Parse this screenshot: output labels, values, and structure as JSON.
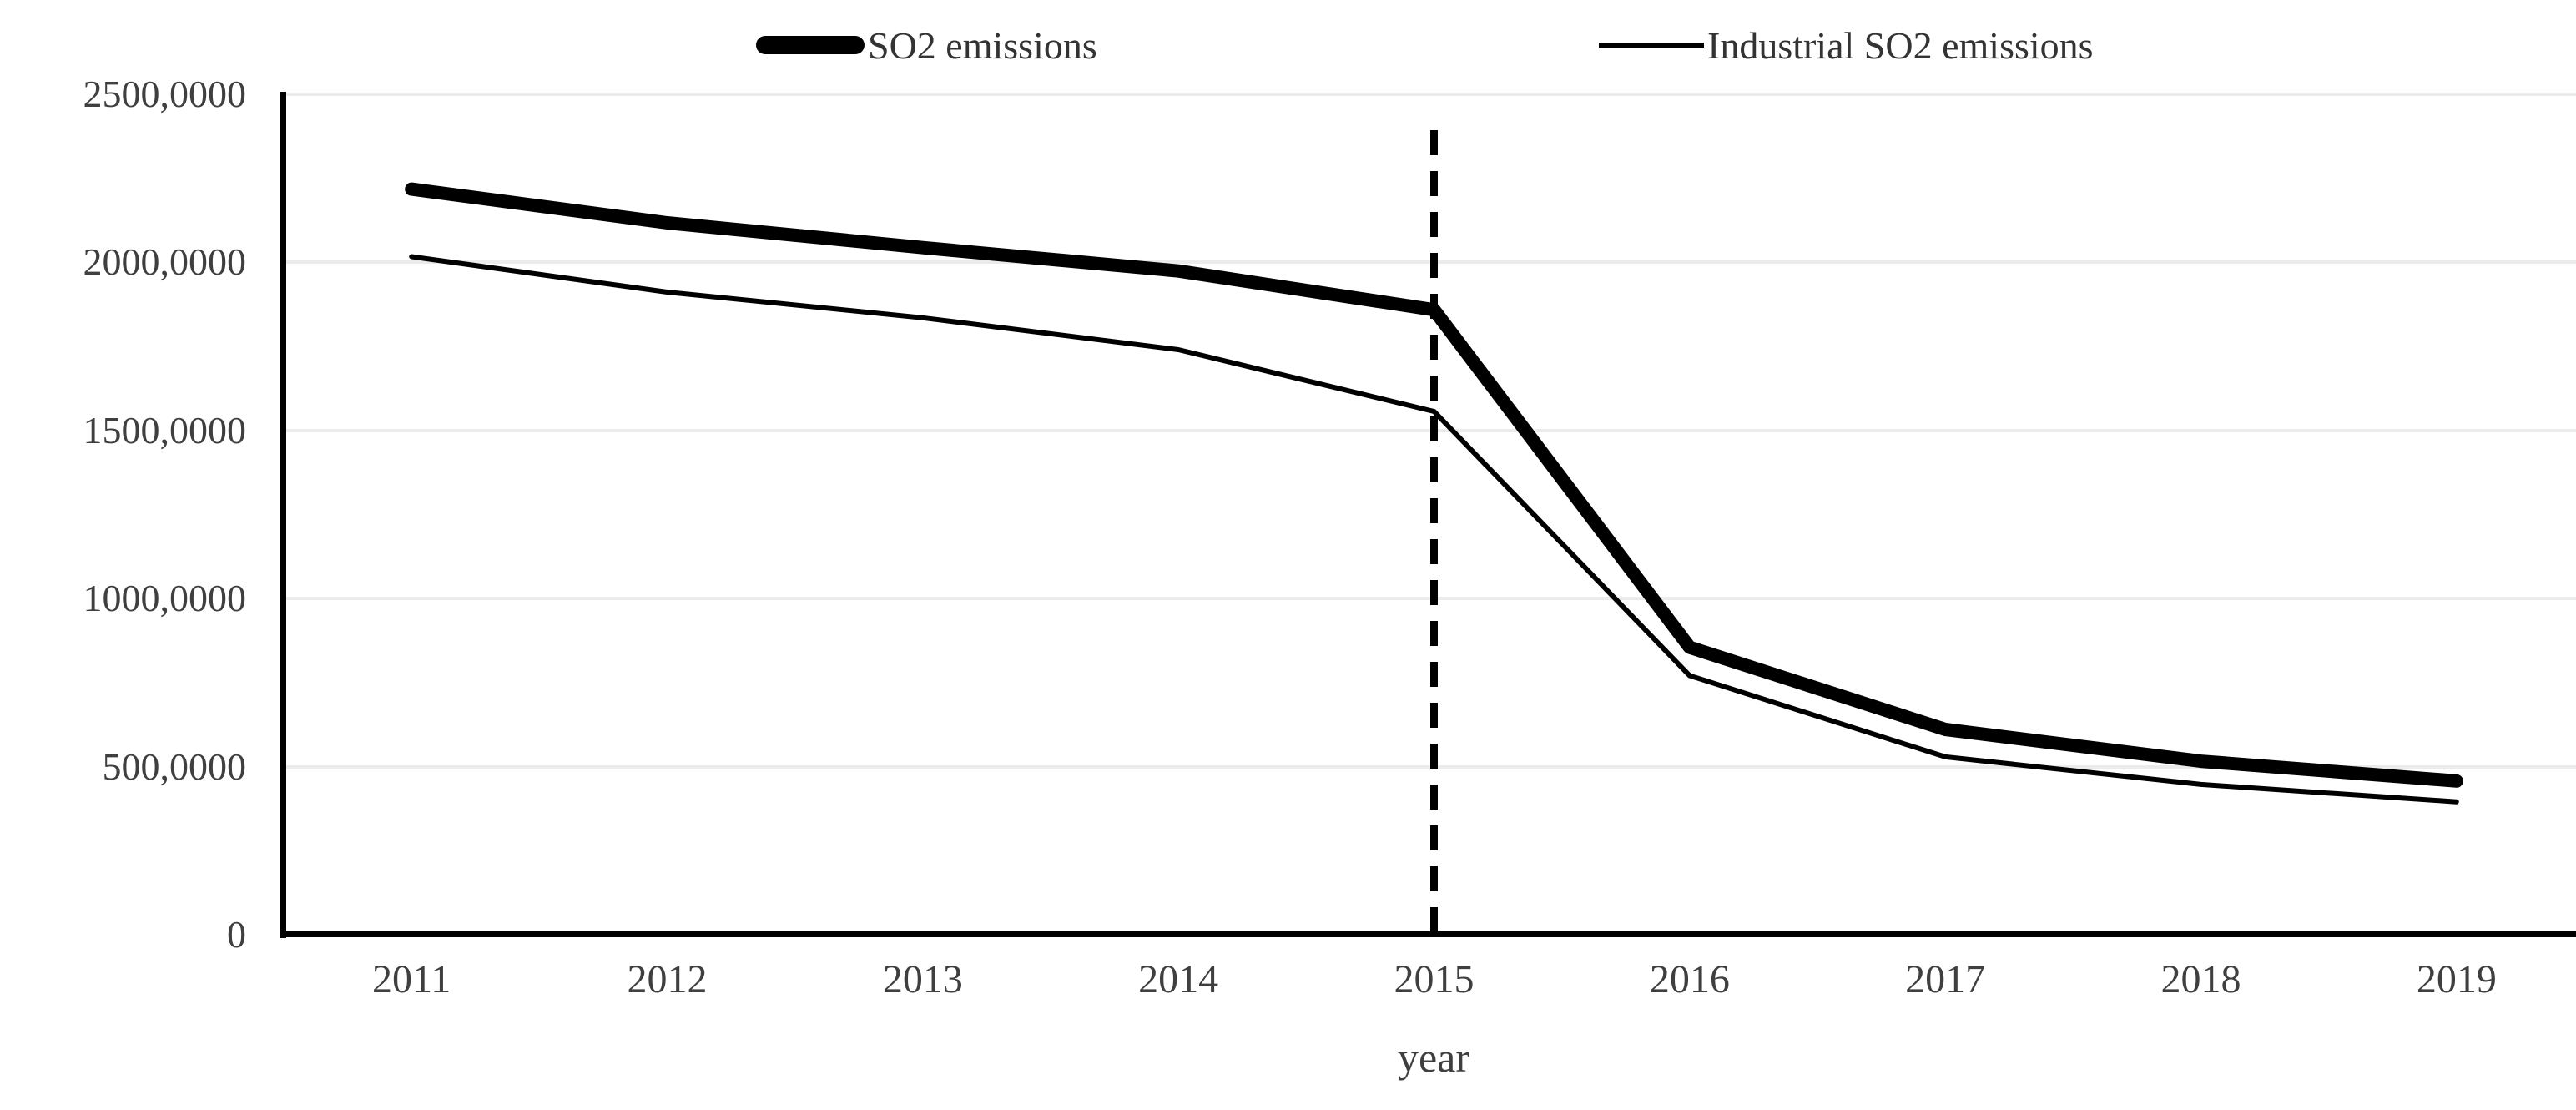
{
  "legend": {
    "items": [
      {
        "label": "SO2 emissions",
        "swatch": "thick-line"
      },
      {
        "label": "Industrial SO2 emissions",
        "swatch": "thin-line"
      }
    ]
  },
  "axes": {
    "x": {
      "title": "year",
      "ticks": [
        "2011",
        "2012",
        "2013",
        "2014",
        "2015",
        "2016",
        "2017",
        "2018",
        "2019"
      ]
    },
    "y": {
      "ticks": [
        {
          "label": "0",
          "value": 0
        },
        {
          "label": "500,0000",
          "value": 500
        },
        {
          "label": "1000,0000",
          "value": 1000
        },
        {
          "label": "1500,0000",
          "value": 1500
        },
        {
          "label": "2000,0000",
          "value": 2000
        },
        {
          "label": "2500,0000",
          "value": 2500
        }
      ]
    }
  },
  "chart_data": {
    "type": "line",
    "x": [
      2011,
      2012,
      2013,
      2014,
      2015,
      2016,
      2017,
      2018,
      2019
    ],
    "series": [
      {
        "name": "SO2 emissions",
        "style": "thick",
        "values": [
          2217.9,
          2117.6,
          2043.9,
          1974.4,
          1859.1,
          854.9,
          610.8,
          516.1,
          457.3
        ]
      },
      {
        "name": "Industrial SO2 emissions",
        "style": "thin",
        "values": [
          2017.2,
          1911.7,
          1835.2,
          1740.3,
          1556.7,
          770.8,
          529.0,
          447.0,
          395.4
        ]
      }
    ],
    "title": "",
    "xlabel": "year",
    "ylabel": "",
    "ylim": [
      0,
      2500
    ],
    "grid": "horizontal",
    "legend_position": "top",
    "annotations": [
      {
        "type": "vline",
        "x": 2015,
        "style": "dashed",
        "color": "#000000"
      }
    ]
  },
  "colors": {
    "series_line": "#000000",
    "dashed_line": "#000000",
    "gridline": "#ebebeb",
    "axis": "#000000",
    "tick_text": "#3f3f3f",
    "legend_text": "#333333",
    "background": "#ffffff"
  }
}
